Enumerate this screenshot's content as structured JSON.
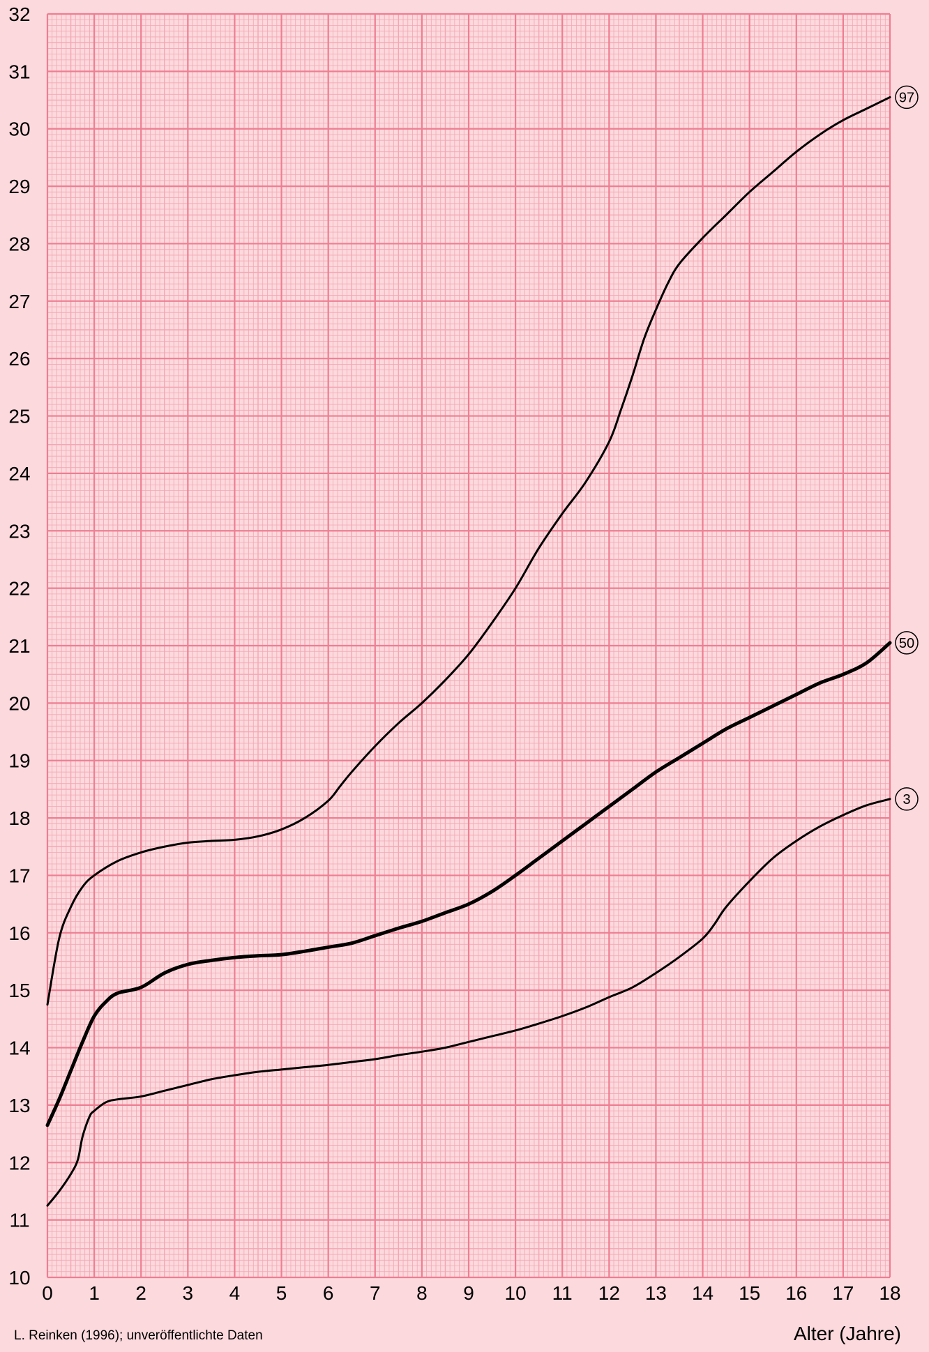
{
  "chart_data": {
    "type": "line",
    "title": "",
    "xlabel": "Alter (Jahre)",
    "ylabel": "",
    "xlim": [
      0,
      18
    ],
    "ylim": [
      10,
      32
    ],
    "x_ticks": [
      "0",
      "1",
      "2",
      "3",
      "4",
      "5",
      "6",
      "7",
      "8",
      "9",
      "10",
      "11",
      "12",
      "13",
      "14",
      "15",
      "16",
      "17",
      "18"
    ],
    "y_ticks": [
      "10",
      "11",
      "12",
      "13",
      "14",
      "15",
      "16",
      "17",
      "18",
      "19",
      "20",
      "21",
      "22",
      "23",
      "24",
      "25",
      "26",
      "27",
      "28",
      "29",
      "30",
      "31",
      "32"
    ],
    "grid": true,
    "series": [
      {
        "name": "97",
        "points": [
          [
            0,
            14.75
          ],
          [
            0.25,
            15.9
          ],
          [
            0.5,
            16.45
          ],
          [
            0.75,
            16.8
          ],
          [
            1,
            17.0
          ],
          [
            1.5,
            17.25
          ],
          [
            2,
            17.4
          ],
          [
            2.5,
            17.5
          ],
          [
            3,
            17.57
          ],
          [
            3.5,
            17.6
          ],
          [
            4,
            17.62
          ],
          [
            4.5,
            17.68
          ],
          [
            5,
            17.8
          ],
          [
            5.5,
            18.0
          ],
          [
            6,
            18.3
          ],
          [
            6.25,
            18.55
          ],
          [
            6.5,
            18.8
          ],
          [
            7,
            19.25
          ],
          [
            7.5,
            19.65
          ],
          [
            8,
            20.0
          ],
          [
            8.5,
            20.4
          ],
          [
            9,
            20.85
          ],
          [
            9.5,
            21.4
          ],
          [
            10,
            22.0
          ],
          [
            10.5,
            22.7
          ],
          [
            11,
            23.3
          ],
          [
            11.5,
            23.85
          ],
          [
            12,
            24.55
          ],
          [
            12.25,
            25.1
          ],
          [
            12.5,
            25.7
          ],
          [
            12.75,
            26.35
          ],
          [
            13,
            26.85
          ],
          [
            13.25,
            27.3
          ],
          [
            13.5,
            27.65
          ],
          [
            14,
            28.1
          ],
          [
            14.5,
            28.5
          ],
          [
            15,
            28.9
          ],
          [
            15.5,
            29.25
          ],
          [
            16,
            29.6
          ],
          [
            16.5,
            29.9
          ],
          [
            17,
            30.15
          ],
          [
            17.5,
            30.35
          ],
          [
            18,
            30.55
          ]
        ]
      },
      {
        "name": "50",
        "points": [
          [
            0,
            12.65
          ],
          [
            0.25,
            13.1
          ],
          [
            0.5,
            13.6
          ],
          [
            0.75,
            14.1
          ],
          [
            1,
            14.55
          ],
          [
            1.25,
            14.8
          ],
          [
            1.5,
            14.95
          ],
          [
            2,
            15.05
          ],
          [
            2.5,
            15.3
          ],
          [
            3,
            15.45
          ],
          [
            3.5,
            15.52
          ],
          [
            4,
            15.57
          ],
          [
            4.5,
            15.6
          ],
          [
            5,
            15.62
          ],
          [
            5.5,
            15.68
          ],
          [
            6,
            15.75
          ],
          [
            6.5,
            15.82
          ],
          [
            7,
            15.95
          ],
          [
            7.5,
            16.08
          ],
          [
            8,
            16.2
          ],
          [
            8.5,
            16.35
          ],
          [
            9,
            16.5
          ],
          [
            9.5,
            16.72
          ],
          [
            10,
            17.0
          ],
          [
            10.5,
            17.3
          ],
          [
            11,
            17.6
          ],
          [
            11.5,
            17.9
          ],
          [
            12,
            18.2
          ],
          [
            12.5,
            18.5
          ],
          [
            13,
            18.8
          ],
          [
            13.5,
            19.05
          ],
          [
            14,
            19.3
          ],
          [
            14.5,
            19.55
          ],
          [
            15,
            19.75
          ],
          [
            15.5,
            19.95
          ],
          [
            16,
            20.15
          ],
          [
            16.5,
            20.35
          ],
          [
            17,
            20.5
          ],
          [
            17.5,
            20.7
          ],
          [
            18,
            21.05
          ]
        ]
      },
      {
        "name": "3",
        "points": [
          [
            0,
            11.25
          ],
          [
            0.25,
            11.5
          ],
          [
            0.5,
            11.8
          ],
          [
            0.65,
            12.05
          ],
          [
            0.75,
            12.45
          ],
          [
            0.9,
            12.8
          ],
          [
            1,
            12.9
          ],
          [
            1.25,
            13.05
          ],
          [
            1.5,
            13.1
          ],
          [
            2,
            13.15
          ],
          [
            2.5,
            13.25
          ],
          [
            3,
            13.35
          ],
          [
            3.5,
            13.45
          ],
          [
            4,
            13.52
          ],
          [
            4.5,
            13.58
          ],
          [
            5,
            13.62
          ],
          [
            5.5,
            13.66
          ],
          [
            6,
            13.7
          ],
          [
            6.5,
            13.75
          ],
          [
            7,
            13.8
          ],
          [
            7.5,
            13.87
          ],
          [
            8,
            13.93
          ],
          [
            8.5,
            14.0
          ],
          [
            9,
            14.1
          ],
          [
            9.5,
            14.2
          ],
          [
            10,
            14.3
          ],
          [
            10.5,
            14.42
          ],
          [
            11,
            14.55
          ],
          [
            11.5,
            14.7
          ],
          [
            12,
            14.88
          ],
          [
            12.5,
            15.05
          ],
          [
            13,
            15.3
          ],
          [
            13.5,
            15.58
          ],
          [
            14,
            15.9
          ],
          [
            14.25,
            16.15
          ],
          [
            14.5,
            16.45
          ],
          [
            15,
            16.9
          ],
          [
            15.5,
            17.3
          ],
          [
            16,
            17.6
          ],
          [
            16.5,
            17.85
          ],
          [
            17,
            18.05
          ],
          [
            17.5,
            18.22
          ],
          [
            18,
            18.33
          ]
        ]
      }
    ],
    "source_note": "L. Reinken (1996); unveröffentlichte Daten",
    "colors": {
      "background": "#fcd9dd",
      "major_grid": "#ee7e92",
      "minor_grid": "#f3a6b4",
      "curve": "#000000"
    }
  }
}
